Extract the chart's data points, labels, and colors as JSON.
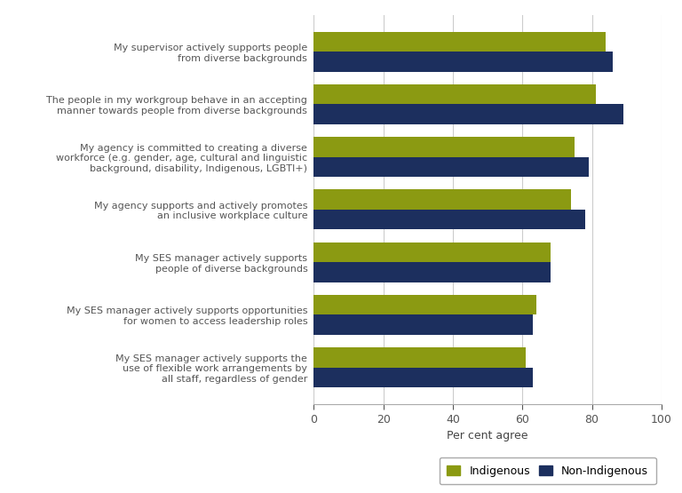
{
  "categories": [
    "My SES manager actively supports the\nuse of flexible work arrangements by\nall staff, regardless of gender",
    "My SES manager actively supports opportunities\nfor women to access leadership roles",
    "My SES manager actively supports\npeople of diverse backgrounds",
    "My agency supports and actively promotes\nan inclusive workplace culture",
    "My agency is committed to creating a diverse\nworkforce (e.g. gender, age, cultural and linguistic\nbackground, disability, Indigenous, LGBTI+)",
    "The people in my workgroup behave in an accepting\nmanner towards people from diverse backgrounds",
    "My supervisor actively supports people\nfrom diverse backgrounds"
  ],
  "indigenous": [
    61,
    64,
    68,
    74,
    75,
    81,
    84
  ],
  "non_indigenous": [
    63,
    63,
    68,
    78,
    79,
    89,
    86
  ],
  "color_indigenous": "#8b9a12",
  "color_non_indigenous": "#1c2f5e",
  "xlabel": "Per cent agree",
  "xlim": [
    0,
    100
  ],
  "xticks": [
    0,
    20,
    40,
    60,
    80,
    100
  ],
  "legend_labels": [
    "Indigenous",
    "Non-Indigenous"
  ],
  "bar_height": 0.38,
  "background_color": "#ffffff",
  "grid_color": "#cccccc"
}
